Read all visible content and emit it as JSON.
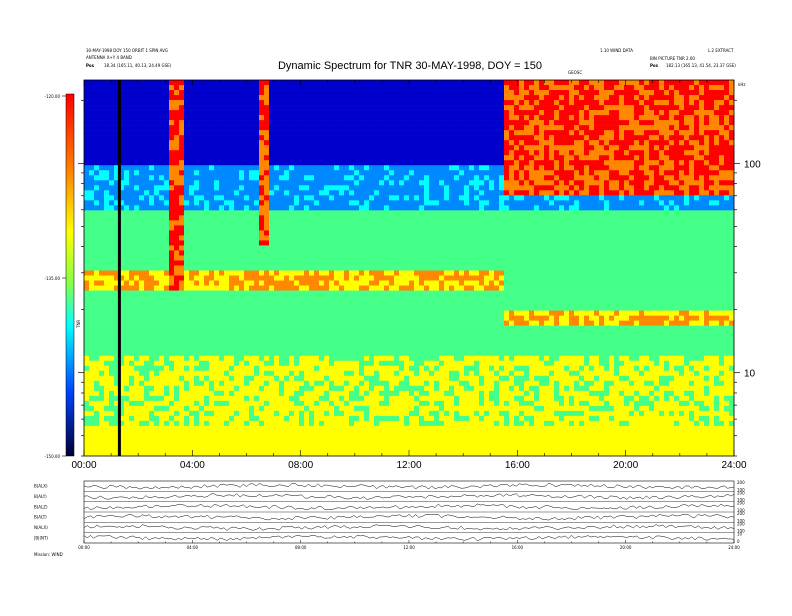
{
  "header": {
    "title": "Dynamic Spectrum for TNR 30-MAY-1998, DOY = 150",
    "left_line1": "30-MAY-1998 DOY 150 ORBIT 1 SPIN AVG",
    "left_line2": "ANTENNA X+Y 4 BAND",
    "left_line3_label": "Pos",
    "left_line3_value": "18.34 (165.11, 40.13, 24.49 GSE)",
    "right_line1": "1.10 WIND DATA",
    "right_line1b": "L.2 EXTRACT",
    "right_line2": "BIN PICTURE TNR 2.00",
    "right_line3_label": "Pos",
    "right_line3_value": "182.13 (165.13, 41.54, 23.37 GSE)",
    "mid_marker": "GEOSC",
    "freq_unit": "kHz"
  },
  "colorbar": {
    "ticks": [
      "-120.00",
      "-135.00",
      "-150.00"
    ],
    "label": "TNR",
    "stops": [
      "#ff0000",
      "#ffff00",
      "#00ffff",
      "#0000cc",
      "#000022"
    ]
  },
  "chart_data": [
    {
      "type": "heatmap",
      "title": "Dynamic Spectrum for TNR 30-MAY-1998, DOY = 150",
      "x_ticks": [
        "00:00",
        "04:00",
        "08:00",
        "12:00",
        "16:00",
        "20:00",
        "24:00"
      ],
      "x_range_hours": [
        0,
        24
      ],
      "y_scale": "log",
      "y_range_khz": [
        4,
        250
      ],
      "y_ticks": [
        100,
        10
      ],
      "color_range_db": [
        -150,
        -120
      ],
      "features": [
        {
          "name": "upper band",
          "freq_khz_range": [
            25,
            30
          ],
          "time_hours": [
            0,
            15.5
          ],
          "level": "yellow"
        },
        {
          "name": "upper band",
          "freq_khz_range": [
            17,
            20
          ],
          "time_hours": [
            15.5,
            24
          ],
          "level": "yellow"
        },
        {
          "name": "emission burst",
          "time_hours": [
            3.1,
            3.6
          ],
          "freq_khz_range": [
            25,
            250
          ],
          "level": "red"
        },
        {
          "name": "emission burst",
          "time_hours": [
            6.4,
            6.8
          ],
          "freq_khz_range": [
            40,
            250
          ],
          "level": "red"
        },
        {
          "name": "emission region",
          "time_hours": [
            15.5,
            24
          ],
          "freq_khz_range": [
            70,
            250
          ],
          "level": "red"
        }
      ]
    },
    {
      "type": "line",
      "title": "",
      "x_ticks": [
        "00:00",
        "04:00",
        "08:00",
        "12:00",
        "16:00",
        "20:00",
        "24:00"
      ],
      "panels": [
        {
          "label": "B(ALX)",
          "right_ticks": [
            "200",
            "100"
          ]
        },
        {
          "label": "B(ALY)",
          "right_ticks": [
            "200",
            "100"
          ]
        },
        {
          "label": "B(ALZ)",
          "right_ticks": [
            "200",
            "100"
          ]
        },
        {
          "label": "B(ALT)",
          "right_ticks": [
            "200",
            "100"
          ]
        },
        {
          "label": "N(ALX)",
          "right_ticks": [
            "200",
            "100"
          ]
        },
        {
          "label": "|B|(NT)",
          "right_ticks": [
            "10",
            "0"
          ]
        }
      ],
      "footer": "Mission: WIND"
    }
  ]
}
